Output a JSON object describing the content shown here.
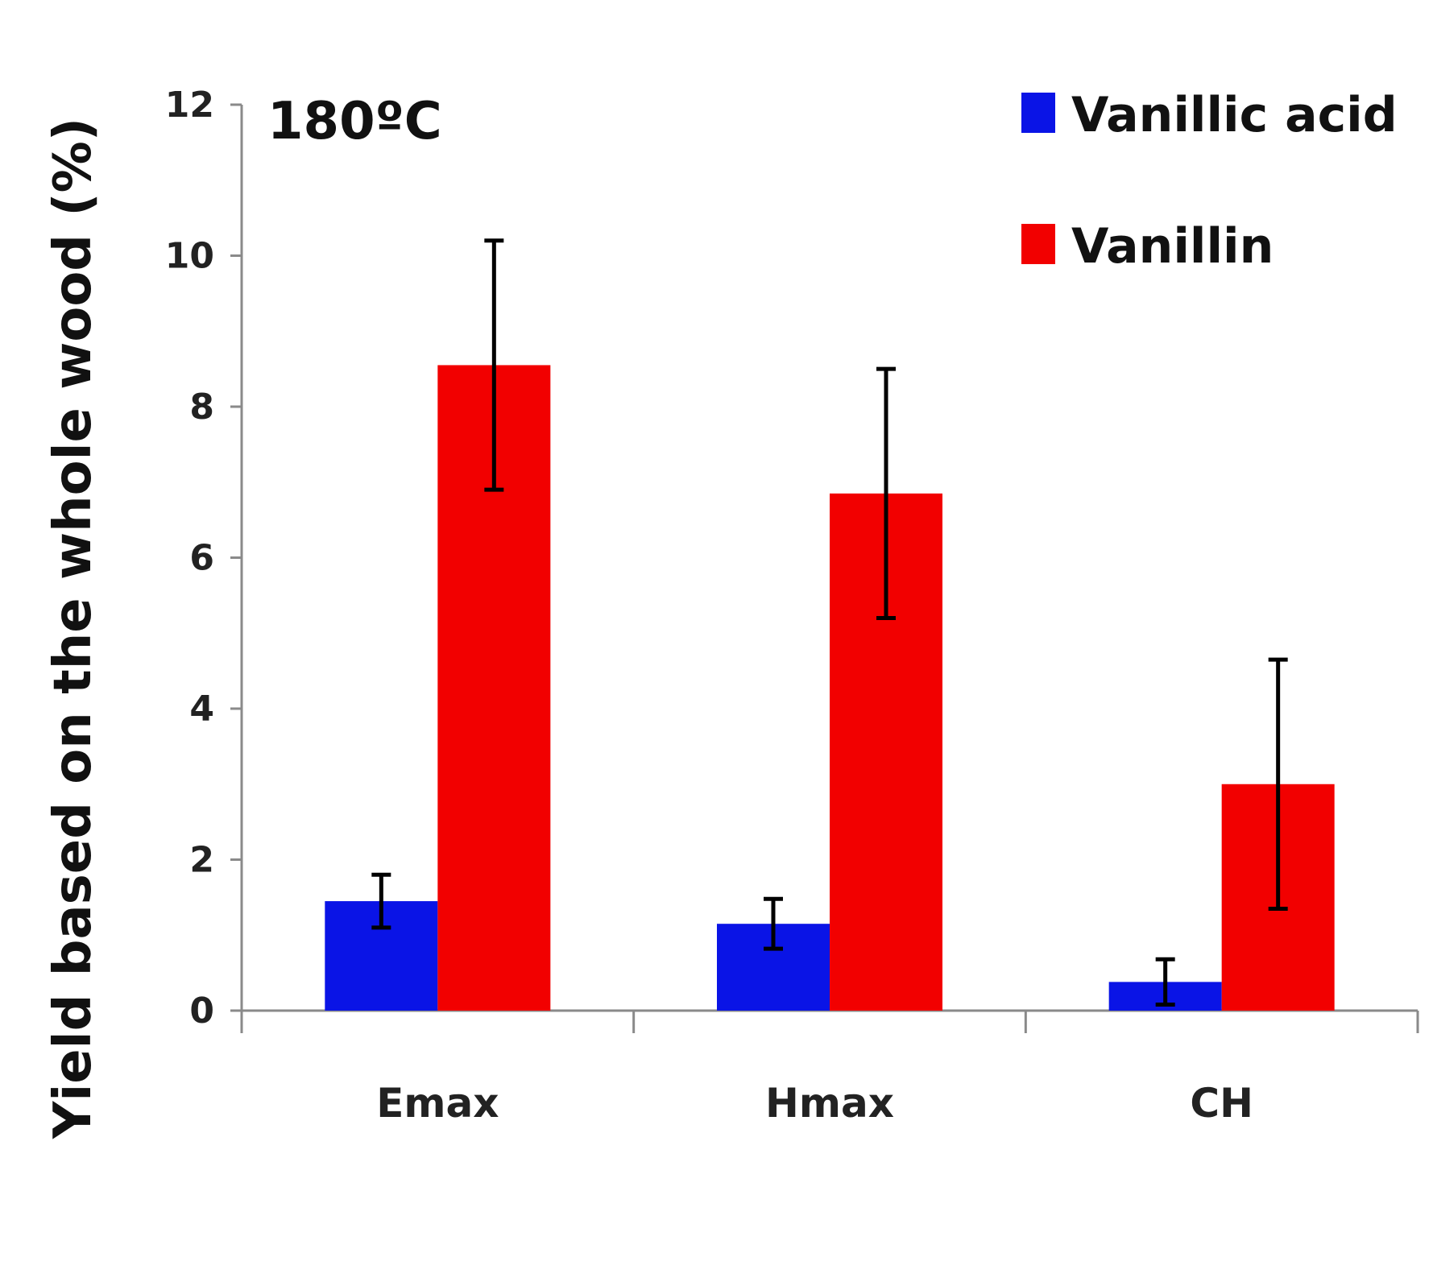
{
  "chart_data": {
    "type": "bar",
    "title": "",
    "annotation": "180ºC",
    "xlabel": "",
    "ylabel": "Yield based on the whole wood (%)",
    "ylim": [
      0,
      12
    ],
    "yticks": [
      0,
      2,
      4,
      6,
      8,
      10,
      12
    ],
    "categories": [
      "Emax",
      "Hmax",
      "CH"
    ],
    "series": [
      {
        "name": "Vanillic acid",
        "color": "#0a14e6",
        "values": [
          1.45,
          1.15,
          0.38
        ],
        "errors": [
          0.35,
          0.33,
          0.3
        ]
      },
      {
        "name": "Vanillin",
        "color": "#f20000",
        "values": [
          8.55,
          6.85,
          3.0
        ],
        "errors": [
          1.65,
          1.65,
          1.65
        ]
      }
    ],
    "legend_position": "top-right",
    "grid": false
  }
}
